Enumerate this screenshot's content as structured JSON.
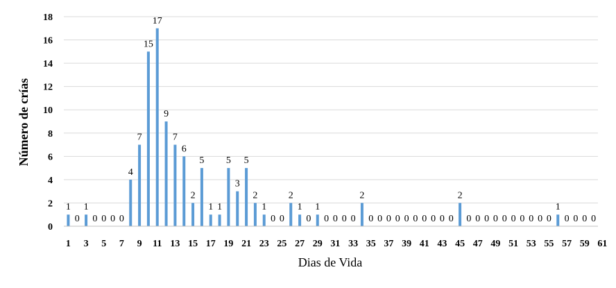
{
  "chart_data": {
    "type": "bar",
    "title": "",
    "xlabel": "Dias de Vida",
    "ylabel": "Número de crías",
    "ylim": [
      0,
      18
    ],
    "yticks": [
      0,
      2,
      4,
      6,
      8,
      10,
      12,
      14,
      16,
      18
    ],
    "grid": true,
    "legend": "none",
    "bar_color": "#5B9BD5",
    "x_tick_labels": [
      "1",
      "3",
      "5",
      "7",
      "9",
      "11",
      "13",
      "15",
      "17",
      "19",
      "21",
      "23",
      "25",
      "27",
      "29",
      "31",
      "33",
      "35",
      "37",
      "39",
      "41",
      "43",
      "45",
      "47",
      "49",
      "51",
      "53",
      "55",
      "57",
      "59",
      "61"
    ],
    "categories": [
      "1",
      "2",
      "3",
      "4",
      "5",
      "6",
      "7",
      "8",
      "9",
      "10",
      "11",
      "12",
      "13",
      "14",
      "15",
      "16",
      "17",
      "18",
      "19",
      "20",
      "21",
      "22",
      "23",
      "24",
      "25",
      "26",
      "27",
      "28",
      "29",
      "30",
      "31",
      "32",
      "33",
      "34",
      "35",
      "36",
      "37",
      "38",
      "39",
      "40",
      "41",
      "42",
      "43",
      "44",
      "45",
      "46",
      "47",
      "48",
      "49",
      "50",
      "51",
      "52",
      "53",
      "54",
      "55",
      "56",
      "57",
      "58",
      "59",
      "60"
    ],
    "values": [
      1,
      0,
      1,
      0,
      0,
      0,
      0,
      4,
      7,
      15,
      17,
      9,
      7,
      6,
      2,
      5,
      1,
      1,
      5,
      3,
      5,
      2,
      1,
      0,
      0,
      2,
      1,
      0,
      1,
      0,
      0,
      0,
      0,
      2,
      0,
      0,
      0,
      0,
      0,
      0,
      0,
      0,
      0,
      0,
      2,
      0,
      0,
      0,
      0,
      0,
      0,
      0,
      0,
      0,
      0,
      1,
      0,
      0,
      0,
      0
    ]
  }
}
